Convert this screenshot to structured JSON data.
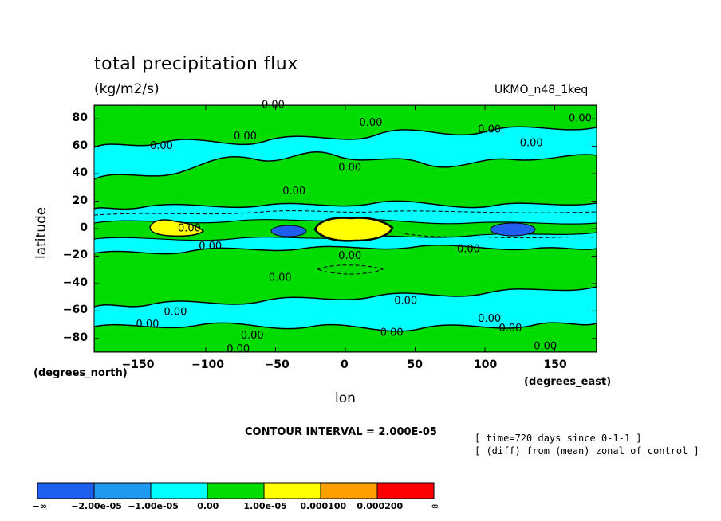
{
  "title": "total precipitation flux",
  "units": "(kg/m2/s)",
  "run_id": "UKMO_n48_1keq",
  "chart_data": {
    "type": "heatmap",
    "xlabel": "lon",
    "ylabel": "latitude",
    "x_unit_label": "(degrees_east)",
    "y_unit_label": "(degrees_north)",
    "xlim": [
      -180,
      180
    ],
    "ylim": [
      -90,
      90
    ],
    "x_ticks": [
      -150,
      -100,
      -50,
      0,
      50,
      100,
      150
    ],
    "y_ticks": [
      80,
      60,
      40,
      20,
      0,
      -20,
      -40,
      -60,
      -80
    ],
    "contour_interval_text": "CONTOUR INTERVAL = 2.000E-05",
    "contour_labels": "0.00",
    "colorbar": {
      "labels": [
        "-∞",
        "-2.00e-05",
        "-1.00e-05",
        "0.00",
        "1.00e-05",
        "0.000100",
        "0.000200",
        "∞"
      ],
      "colors": [
        "#1e5ff0",
        "#1e9bf0",
        "#00ffff",
        "#00dc00",
        "#ffff00",
        "#ffa000",
        "#ff0000"
      ]
    },
    "background_level_color": "#00ffff",
    "regions": [
      {
        "level": "1.00e-05",
        "desc": "equatorial maximum",
        "lon": [
          -30,
          35
        ],
        "lat": [
          -5,
          8
        ]
      },
      {
        "level": "1.00e-05",
        "desc": "western equatorial patch",
        "lon": [
          -140,
          -100
        ],
        "lat": [
          -3,
          7
        ]
      },
      {
        "level": "-2.00e-05",
        "desc": "equatorial minimum east",
        "lon": [
          100,
          140
        ],
        "lat": [
          -5,
          5
        ]
      },
      {
        "level": "-2.00e-05",
        "desc": "equatorial minimum central",
        "lon": [
          -55,
          -20
        ],
        "lat": [
          -5,
          4
        ]
      }
    ]
  },
  "notes": [
    "[ time=720 days since 0-1-1 ]",
    "[ (diff) from (mean) zonal of control ]"
  ]
}
